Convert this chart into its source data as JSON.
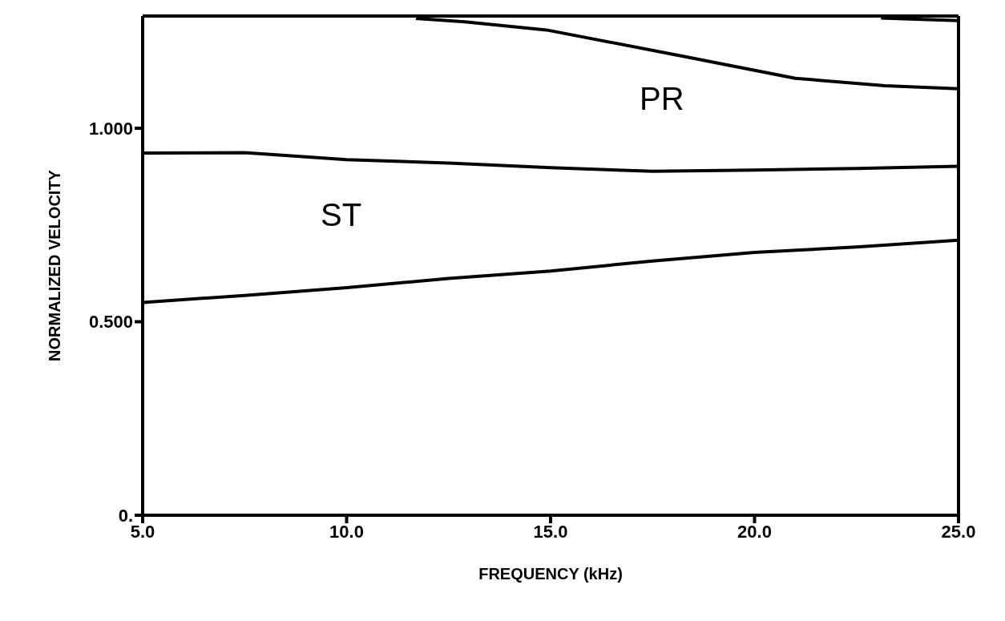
{
  "chart_data": {
    "type": "line",
    "xlabel": "FREQUENCY (kHz)",
    "ylabel": "NORMALIZED VELOCITY",
    "xlim": [
      5,
      25
    ],
    "xticks": [
      {
        "value": 5,
        "label": "5.0"
      },
      {
        "value": 10,
        "label": "10.0"
      },
      {
        "value": 15,
        "label": "15.0"
      },
      {
        "value": 20,
        "label": "20.0"
      },
      {
        "value": 25,
        "label": "25.0"
      }
    ],
    "ylim": [
      0,
      1.29
    ],
    "yticks": [
      {
        "value": 0,
        "label": "0."
      },
      {
        "value": 0.5,
        "label": "0.500"
      },
      {
        "value": 1,
        "label": "1.000"
      }
    ],
    "marker": "none",
    "line_style": "solid",
    "series": [
      {
        "color": "#000000",
        "x": [
          11.7,
          12.9,
          14.9,
          18.3,
          21.0,
          23.2,
          25.0
        ],
        "values": [
          1.284,
          1.275,
          1.254,
          1.185,
          1.129,
          1.11,
          1.102
        ]
      },
      {
        "color": "#000000",
        "x": [
          23.1,
          25.0
        ],
        "values": [
          1.285,
          1.278
        ]
      },
      {
        "color": "#000000",
        "x": [
          5,
          7.5,
          10,
          12.5,
          15,
          17.5,
          20,
          22.5,
          25
        ],
        "values": [
          0.936,
          0.937,
          0.919,
          0.91,
          0.898,
          0.889,
          0.892,
          0.896,
          0.902
        ]
      },
      {
        "color": "#000000",
        "x": [
          5,
          7.5,
          10,
          12.5,
          15,
          17.5,
          20,
          22.5,
          25
        ],
        "values": [
          0.55,
          0.568,
          0.588,
          0.612,
          0.631,
          0.657,
          0.679,
          0.693,
          0.711
        ]
      }
    ],
    "annotations": [
      "PR",
      "ST"
    ]
  }
}
